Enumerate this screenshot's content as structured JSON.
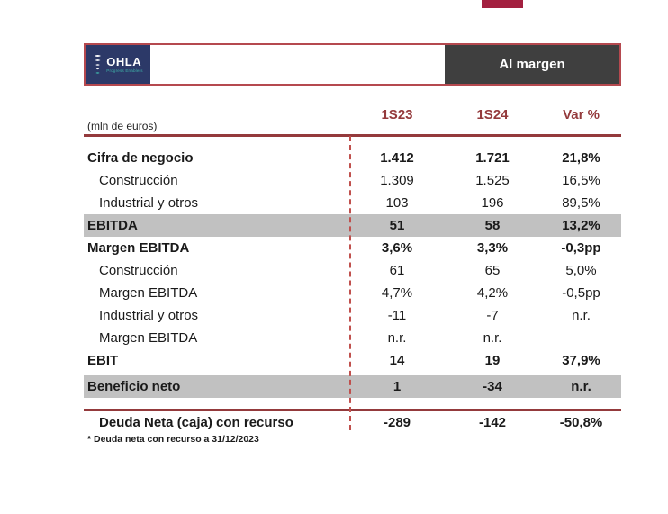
{
  "colors": {
    "accent_crimson": "#A32040",
    "maroon": "#943A3C",
    "bar_border": "#B5494F",
    "navy": "#2C3968",
    "teal": "#3FB3A9",
    "tab_gray": "#3F3F3F",
    "band_gray": "#C1C1C1",
    "dashed_red": "#C0504D"
  },
  "header_bar": {
    "logo": {
      "text": "OHLA",
      "tagline": "Progress Enablers"
    },
    "tab": {
      "label": "Al margen"
    }
  },
  "table": {
    "unit_label": "(mln de euros)",
    "columns": [
      "1S23",
      "1S24",
      "Var %"
    ],
    "rows": [
      {
        "type": "data",
        "label": "Cifra de negocio",
        "bold": true,
        "indent": 0,
        "band": false,
        "values": [
          "1.412",
          "1.721",
          "21,8%"
        ]
      },
      {
        "type": "data",
        "label": "Construcción",
        "bold": false,
        "indent": 1,
        "band": false,
        "values": [
          "1.309",
          "1.525",
          "16,5%"
        ]
      },
      {
        "type": "data",
        "label": "Industrial y otros",
        "bold": false,
        "indent": 1,
        "band": false,
        "values": [
          "103",
          "196",
          "89,5%"
        ]
      },
      {
        "type": "data",
        "label": "EBITDA",
        "bold": true,
        "indent": 0,
        "band": true,
        "values": [
          "51",
          "58",
          "13,2%"
        ]
      },
      {
        "type": "data",
        "label": "Margen EBITDA",
        "bold": true,
        "indent": 0,
        "band": false,
        "values": [
          "3,6%",
          "3,3%",
          "-0,3pp"
        ]
      },
      {
        "type": "data",
        "label": "Construcción",
        "bold": false,
        "indent": 1,
        "band": false,
        "values": [
          "61",
          "65",
          "5,0%"
        ]
      },
      {
        "type": "data",
        "label": "Margen EBITDA",
        "bold": false,
        "indent": 1,
        "band": false,
        "values": [
          "4,7%",
          "4,2%",
          "-0,5pp"
        ]
      },
      {
        "type": "data",
        "label": "Industrial y otros",
        "bold": false,
        "indent": 1,
        "band": false,
        "values": [
          "-11",
          "-7",
          "n.r."
        ]
      },
      {
        "type": "data",
        "label": "Margen EBITDA",
        "bold": false,
        "indent": 1,
        "band": false,
        "values": [
          "n.r.",
          "n.r.",
          ""
        ]
      },
      {
        "type": "data",
        "label": "EBIT",
        "bold": true,
        "indent": 0,
        "band": false,
        "values": [
          "14",
          "19",
          "37,9%"
        ]
      },
      {
        "type": "spacer"
      },
      {
        "type": "data",
        "label": "Beneficio neto",
        "bold": true,
        "indent": 0,
        "band": true,
        "values": [
          "1",
          "-34",
          "n.r."
        ]
      },
      {
        "type": "divider"
      },
      {
        "type": "data",
        "label": "Deuda Neta (caja) con recurso",
        "bold": true,
        "indent": 1,
        "band": false,
        "values": [
          "-289",
          "-142",
          "-50,8%"
        ]
      }
    ],
    "footnote": "* Deuda neta con recurso a 31/12/2023"
  }
}
